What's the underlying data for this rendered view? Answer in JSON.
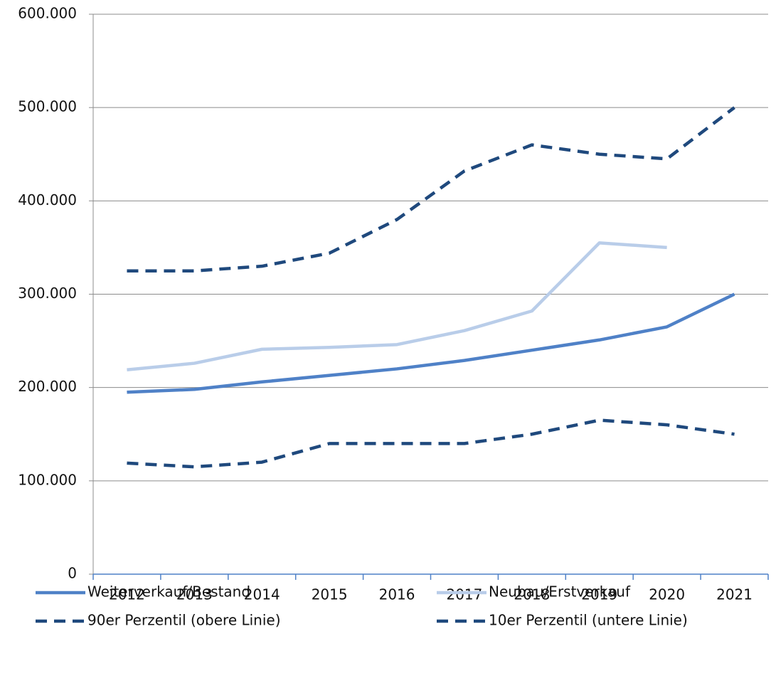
{
  "chart_data": {
    "type": "line",
    "categories": [
      "2012",
      "2013",
      "2014",
      "2015",
      "2016",
      "2017",
      "2018",
      "2019",
      "2020",
      "2021"
    ],
    "series": [
      {
        "name": "Weiterverkauf/Bestand",
        "color": "#4f81c7",
        "dashed": false,
        "values": [
          195000,
          198000,
          206000,
          213000,
          220000,
          229000,
          240000,
          251000,
          265000,
          300000
        ]
      },
      {
        "name": "Neubau/Erstverkauf",
        "color": "#b9cde9",
        "dashed": false,
        "values": [
          219000,
          226000,
          241000,
          243000,
          246000,
          261000,
          282000,
          355000,
          350000,
          null
        ]
      },
      {
        "name": "90er Perzentil (obere Linie)",
        "color": "#1f497d",
        "dashed": true,
        "values": [
          325000,
          325000,
          330000,
          344000,
          380000,
          432000,
          460000,
          450000,
          445000,
          500000
        ]
      },
      {
        "name": "10er Perzentil (untere Linie)",
        "color": "#1f497d",
        "dashed": true,
        "values": [
          119000,
          115000,
          120000,
          140000,
          140000,
          140000,
          150000,
          165000,
          160000,
          150000
        ]
      }
    ],
    "ylim": [
      0,
      600000
    ],
    "yticks": [
      0,
      {
        "value": 100000,
        "label": "100.000"
      },
      {
        "value": 200000,
        "label": "200.000"
      },
      {
        "value": 300000,
        "label": "300.000"
      },
      {
        "value": 400000,
        "label": "400.000"
      },
      {
        "value": 500000,
        "label": "500.000"
      },
      {
        "value": 600000,
        "label": "600.000"
      }
    ],
    "grid": true
  }
}
